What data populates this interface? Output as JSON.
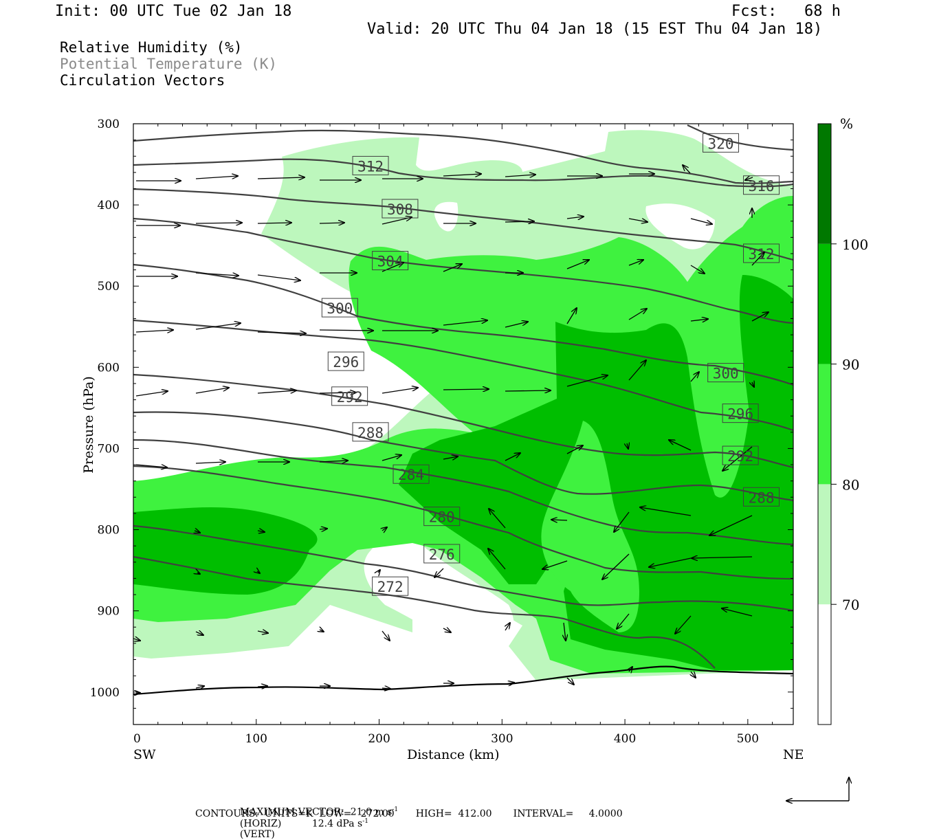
{
  "header": {
    "init": "Init: 00 UTC Tue 02 Jan 18",
    "fcst": "Fcst:   68 h",
    "valid": "Valid: 20 UTC Thu 04 Jan 18 (15 EST Thu 04 Jan 18)"
  },
  "legend": {
    "line1": "Relative Humidity (%)",
    "line2": "Potential Temperature (K)",
    "line3": "Circulation Vectors"
  },
  "footer": {
    "max_vector_a": "MAXIMUM VECTOR:  21.0 m s",
    "max_vector_b": "(HORIZ)          12.4 dPa s",
    "max_vector_c": "(VERT)",
    "sup": "-1",
    "contours": "CONTOURS:  UNITS=K  LOW=   272.00       HIGH=  412.00       INTERVAL=     4.0000"
  },
  "chart_data": {
    "type": "cross-section",
    "xlabel": "Distance (km)",
    "ylabel": "Pressure (hPa)",
    "xlim": [
      0,
      537
    ],
    "ylim": [
      1040,
      300
    ],
    "x_ticks": [
      "0",
      "100",
      "200",
      "300",
      "400",
      "500"
    ],
    "y_ticks": [
      "300",
      "400",
      "500",
      "600",
      "700",
      "800",
      "900",
      "1000"
    ],
    "x_end_labels": {
      "left": "SW",
      "right": "NE"
    },
    "colorbar": {
      "unit": "%",
      "levels": [
        "70",
        "80",
        "90",
        "100"
      ],
      "colors": [
        "#ffffff",
        "#bdf7bd",
        "#3ff23f",
        "#00be00",
        "#007800"
      ]
    },
    "theta_labels": [
      {
        "text": "320",
        "x": 478,
        "p": 324
      },
      {
        "text": "316",
        "x": 511,
        "p": 376
      },
      {
        "text": "312",
        "x": 193,
        "p": 352
      },
      {
        "text": "312",
        "x": 511,
        "p": 460
      },
      {
        "text": "308",
        "x": 217,
        "p": 405
      },
      {
        "text": "304",
        "x": 209,
        "p": 469
      },
      {
        "text": "300",
        "x": 168,
        "p": 527
      },
      {
        "text": "300",
        "x": 482,
        "p": 607
      },
      {
        "text": "296",
        "x": 173,
        "p": 593
      },
      {
        "text": "296",
        "x": 494,
        "p": 657
      },
      {
        "text": "292",
        "x": 176,
        "p": 636
      },
      {
        "text": "292",
        "x": 494,
        "p": 709
      },
      {
        "text": "288",
        "x": 193,
        "p": 680
      },
      {
        "text": "288",
        "x": 511,
        "p": 760
      },
      {
        "text": "284",
        "x": 226,
        "p": 732
      },
      {
        "text": "280",
        "x": 251,
        "p": 784
      },
      {
        "text": "276",
        "x": 251,
        "p": 830
      },
      {
        "text": "272",
        "x": 209,
        "p": 870
      }
    ]
  }
}
